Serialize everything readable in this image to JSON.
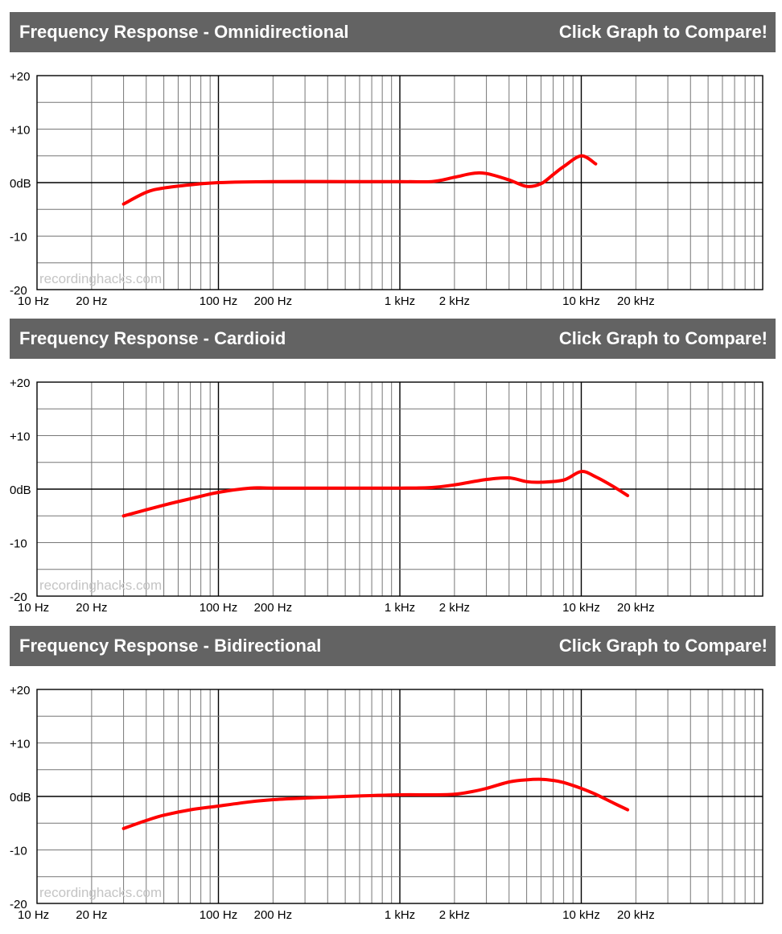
{
  "compare_label": "Click Graph to Compare!",
  "watermark": "recordinghacks.com",
  "axis": {
    "x_ticks": [
      {
        "value": 10,
        "label": "10 Hz"
      },
      {
        "value": 20,
        "label": "20 Hz"
      },
      {
        "value": 100,
        "label": "100 Hz"
      },
      {
        "value": 200,
        "label": "200 Hz"
      },
      {
        "value": 1000,
        "label": "1 kHz"
      },
      {
        "value": 2000,
        "label": "2 kHz"
      },
      {
        "value": 10000,
        "label": "10 kHz"
      },
      {
        "value": 20000,
        "label": "20 kHz"
      }
    ],
    "y_ticks": [
      {
        "value": 20,
        "label": "+20"
      },
      {
        "value": 10,
        "label": "+10"
      },
      {
        "value": 0,
        "label": "0dB"
      },
      {
        "value": -10,
        "label": "-10"
      },
      {
        "value": -20,
        "label": "-20"
      }
    ]
  },
  "chart_data": [
    {
      "type": "line",
      "title": "Frequency Response - Omnidirectional",
      "xlabel": "",
      "ylabel": "",
      "x_scale": "log",
      "xlim": [
        10,
        100000
      ],
      "ylim": [
        -20,
        20
      ],
      "grid": true,
      "line_color": "#ff0000",
      "series": [
        {
          "x": [
            30,
            40,
            50,
            70,
            100,
            200,
            500,
            1000,
            1500,
            2000,
            2500,
            3000,
            4000,
            5000,
            6000,
            7000,
            8000,
            10000,
            12000
          ],
          "y": [
            -4,
            -1.8,
            -1,
            -0.4,
            0,
            0.2,
            0.2,
            0.2,
            0.2,
            1,
            1.7,
            1.7,
            0.5,
            -0.7,
            -0.2,
            1.5,
            3,
            5,
            3.5
          ]
        }
      ]
    },
    {
      "type": "line",
      "title": "Frequency Response - Cardioid",
      "xlabel": "",
      "ylabel": "",
      "x_scale": "log",
      "xlim": [
        10,
        100000
      ],
      "ylim": [
        -20,
        20
      ],
      "grid": true,
      "line_color": "#ff0000",
      "series": [
        {
          "x": [
            30,
            50,
            70,
            100,
            150,
            200,
            500,
            1000,
            1500,
            2000,
            3000,
            4000,
            5000,
            6000,
            8000,
            10000,
            12000,
            15000,
            18000
          ],
          "y": [
            -5,
            -3,
            -1.8,
            -0.6,
            0.2,
            0.2,
            0.2,
            0.2,
            0.3,
            0.8,
            1.8,
            2.1,
            1.4,
            1.3,
            1.7,
            3.3,
            2.3,
            0.5,
            -1.2
          ]
        }
      ]
    },
    {
      "type": "line",
      "title": "Frequency Response - Bidirectional",
      "xlabel": "",
      "ylabel": "",
      "x_scale": "log",
      "xlim": [
        10,
        100000
      ],
      "ylim": [
        -20,
        20
      ],
      "grid": true,
      "line_color": "#ff0000",
      "series": [
        {
          "x": [
            30,
            40,
            50,
            70,
            100,
            150,
            200,
            300,
            500,
            1000,
            1500,
            2000,
            2500,
            3000,
            4000,
            5000,
            6000,
            7000,
            8000,
            10000,
            12000,
            15000,
            18000
          ],
          "y": [
            -6,
            -4.5,
            -3.5,
            -2.5,
            -1.8,
            -1,
            -0.6,
            -0.3,
            0,
            0.3,
            0.3,
            0.4,
            0.9,
            1.5,
            2.7,
            3.1,
            3.2,
            3,
            2.6,
            1.5,
            0.4,
            -1.2,
            -2.5
          ]
        }
      ]
    }
  ]
}
